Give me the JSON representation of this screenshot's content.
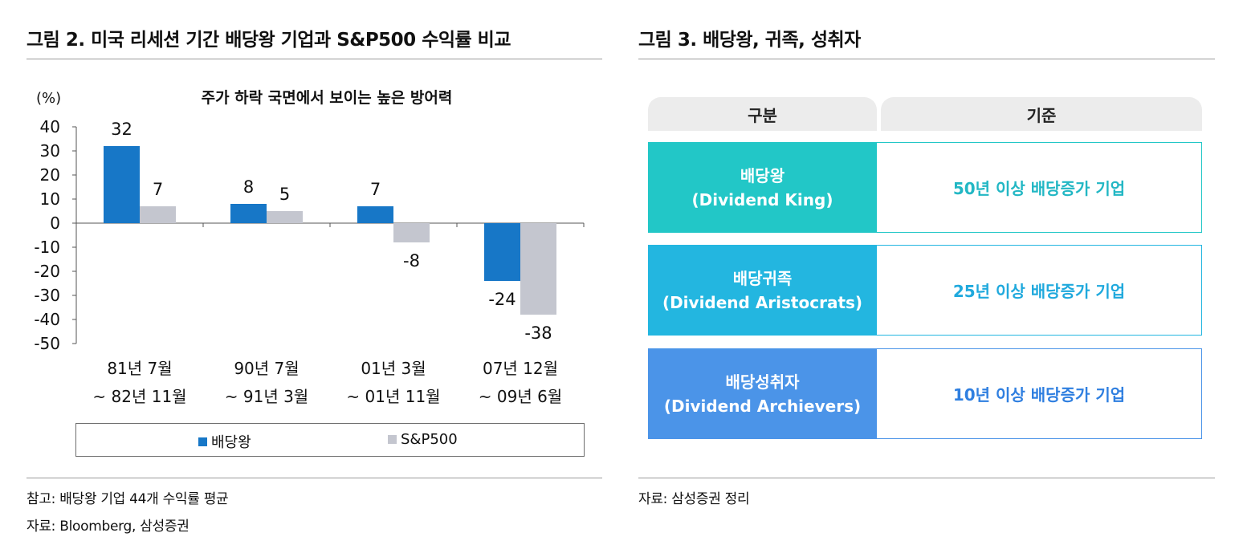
{
  "figure2": {
    "title": "그림 2. 미국 리세션 기간 배당왕 기업과 S&P500 수익률 비교",
    "note1": "참고: 배당왕 기업 44개 수익률 평균",
    "note2": "자료: Bloomberg, 삼성증권"
  },
  "chart_data": {
    "type": "bar",
    "title": "주가 하락 국면에서 보이는 높은 방어력",
    "ylabel": "(%)",
    "xlabel": "",
    "ylim": [
      -50,
      40
    ],
    "yticks": [
      "40",
      "30",
      "20",
      "10",
      "0",
      "-10",
      "-20",
      "-30",
      "-40",
      "-50"
    ],
    "categories": [
      [
        "81년 7월",
        "~ 82년 11월"
      ],
      [
        "90년 7월",
        "~ 91년 3월"
      ],
      [
        "01년 3월",
        "~ 01년 11월"
      ],
      [
        "07년 12월",
        "~ 09년 6월"
      ]
    ],
    "series": [
      {
        "name": "배당왕",
        "values": [
          32,
          8,
          7,
          -24
        ],
        "labels": [
          "32",
          "8",
          "7",
          "-24"
        ],
        "color": "#1777c7"
      },
      {
        "name": "S&P500",
        "values": [
          7,
          5,
          -8,
          -38
        ],
        "labels": [
          "7",
          "5",
          "-8",
          "-38"
        ],
        "color": "#c4c6cf"
      }
    ],
    "legend": "bottom",
    "grid": false
  },
  "figure3": {
    "title": "그림 3. 배당왕, 귀족, 성취자",
    "header": {
      "col1": "구분",
      "col2": "기준"
    },
    "rows": [
      {
        "name": "배당왕",
        "english": "(Dividend King)",
        "criteria": "50년 이상 배당증가 기업",
        "color": "#22c7c7",
        "text_color": "#22b7c4"
      },
      {
        "name": "배당귀족",
        "english": "(Dividend Aristocrats)",
        "criteria": "25년 이상 배당증가 기업",
        "color": "#23b6e0",
        "text_color": "#1fa9dd"
      },
      {
        "name": "배당성취자",
        "english": "(Dividend Archievers)",
        "criteria": "10년 이상 배당증가 기업",
        "color": "#4b94e8",
        "text_color": "#2f7fe0"
      }
    ],
    "source": "자료: 삼성증권 정리"
  }
}
